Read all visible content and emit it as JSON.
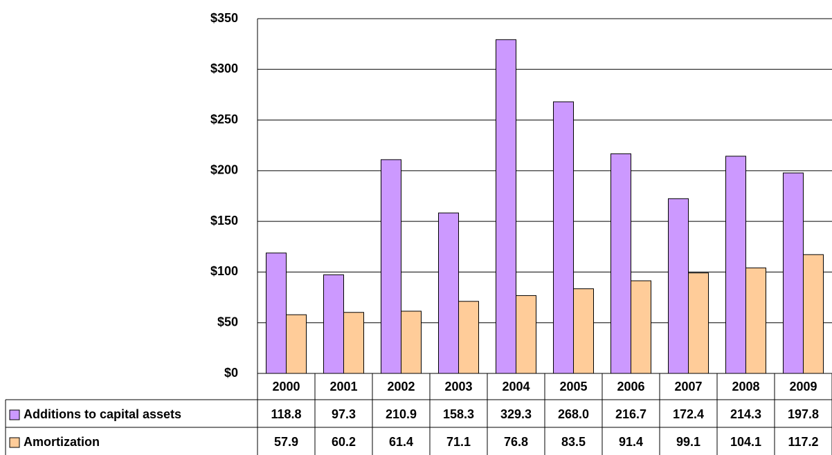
{
  "chart_data": {
    "type": "bar",
    "categories": [
      "2000",
      "2001",
      "2002",
      "2003",
      "2004",
      "2005",
      "2006",
      "2007",
      "2008",
      "2009"
    ],
    "series": [
      {
        "name": "Additions to capital assets",
        "color": "#cc99ff",
        "values": [
          118.8,
          97.3,
          210.9,
          158.3,
          329.3,
          268,
          216.7,
          172.4,
          214.3,
          197.8
        ],
        "value_labels": [
          "118.8",
          "97.3",
          "210.9",
          "158.3",
          "329.3",
          "268.0",
          "216.7",
          "172.4",
          "214.3",
          "197.8"
        ]
      },
      {
        "name": "Amortization",
        "color": "#ffcc99",
        "values": [
          57.9,
          60.2,
          61.4,
          71.1,
          76.8,
          83.5,
          91.4,
          99.1,
          104.1,
          117.2
        ],
        "value_labels": [
          "57.9",
          "60.2",
          "61.4",
          "71.1",
          "76.8",
          "83.5",
          "91.4",
          "99.1",
          "104.1",
          "117.2"
        ]
      }
    ],
    "ylim": [
      0,
      350
    ],
    "yticks": [
      {
        "value": 0,
        "label": "$0"
      },
      {
        "value": 50,
        "label": "$50"
      },
      {
        "value": 100,
        "label": "$100"
      },
      {
        "value": 150,
        "label": "$150"
      },
      {
        "value": 200,
        "label": "$200"
      },
      {
        "value": 250,
        "label": "$250"
      },
      {
        "value": 300,
        "label": "$300"
      },
      {
        "value": 350,
        "label": "$350"
      }
    ],
    "grid": true,
    "data_table": true
  }
}
